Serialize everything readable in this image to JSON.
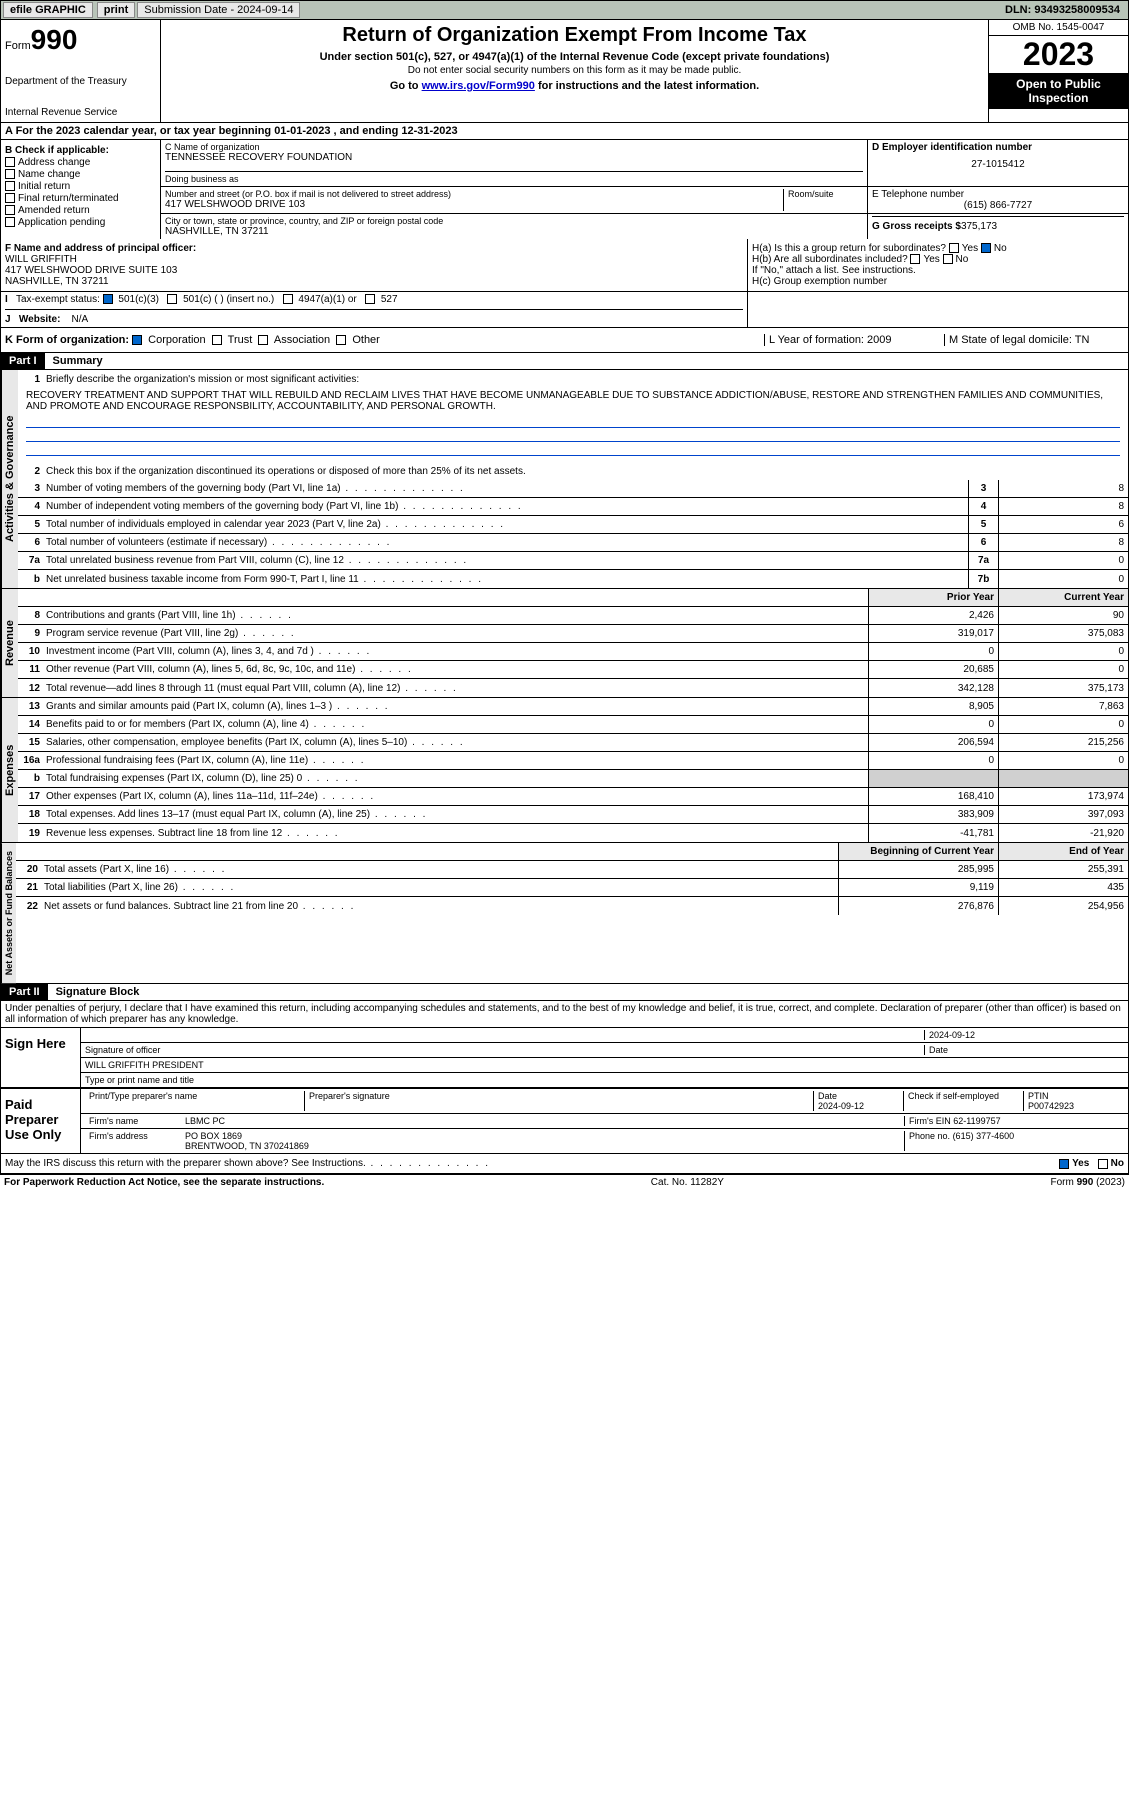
{
  "topbar": {
    "efile": "efile GRAPHIC",
    "print": "print",
    "sub_label": "Submission Date - 2024-09-14",
    "dln": "DLN: 93493258009534"
  },
  "header": {
    "form_prefix": "Form",
    "form_num": "990",
    "dept": "Department of the Treasury",
    "irs": "Internal Revenue Service",
    "title": "Return of Organization Exempt From Income Tax",
    "sub1": "Under section 501(c), 527, or 4947(a)(1) of the Internal Revenue Code (except private foundations)",
    "sub2": "Do not enter social security numbers on this form as it may be made public.",
    "sub3_pre": "Go to ",
    "sub3_link": "www.irs.gov/Form990",
    "sub3_post": " for instructions and the latest information.",
    "omb": "OMB No. 1545-0047",
    "year": "2023",
    "inspect": "Open to Public Inspection"
  },
  "row_a": "A For the 2023 calendar year, or tax year beginning 01-01-2023   , and ending 12-31-2023",
  "col_b": {
    "label": "B Check if applicable:",
    "items": [
      "Address change",
      "Name change",
      "Initial return",
      "Final return/terminated",
      "Amended return",
      "Application pending"
    ]
  },
  "col_c": {
    "name_lbl": "C Name of organization",
    "name": "TENNESSEE RECOVERY FOUNDATION",
    "dba_lbl": "Doing business as",
    "addr_lbl": "Number and street (or P.O. box if mail is not delivered to street address)",
    "room_lbl": "Room/suite",
    "addr": "417 WELSHWOOD DRIVE 103",
    "city_lbl": "City or town, state or province, country, and ZIP or foreign postal code",
    "city": "NASHVILLE, TN  37211"
  },
  "col_d": {
    "ein_lbl": "D Employer identification number",
    "ein": "27-1015412",
    "tel_lbl": "E Telephone number",
    "tel": "(615) 866-7727",
    "gross_lbl": "G Gross receipts $",
    "gross": "375,173"
  },
  "col_f": {
    "lbl": "F Name and address of principal officer:",
    "name": "WILL GRIFFITH",
    "addr": "417 WELSHWOOD DRIVE SUITE 103",
    "city": "NASHVILLE, TN  37211"
  },
  "col_h": {
    "a": "H(a) Is this a group return for subordinates?",
    "b": "H(b) Are all subordinates included?",
    "note": "If \"No,\" attach a list. See instructions.",
    "c": "H(c) Group exemption number"
  },
  "row_i": {
    "lbl": "Tax-exempt status:",
    "opts": [
      "501(c)(3)",
      "501(c) (  ) (insert no.)",
      "4947(a)(1) or",
      "527"
    ]
  },
  "row_j": {
    "lbl": "Website:",
    "val": "N/A"
  },
  "row_k": {
    "lbl": "K Form of organization:",
    "opts": [
      "Corporation",
      "Trust",
      "Association",
      "Other"
    ],
    "l": "L Year of formation: 2009",
    "m": "M State of legal domicile: TN"
  },
  "part1": {
    "hdr": "Part I",
    "title": "Summary"
  },
  "summary": {
    "q1": "Briefly describe the organization's mission or most significant activities:",
    "mission": "RECOVERY TREATMENT AND SUPPORT THAT WILL REBUILD AND RECLAIM LIVES THAT HAVE BECOME UNMANAGEABLE DUE TO SUBSTANCE ADDICTION/ABUSE, RESTORE AND STRENGTHEN FAMILIES AND COMMUNITIES, AND PROMOTE AND ENCOURAGE RESPONSBILITY, ACCOUNTABILITY, AND PERSONAL GROWTH.",
    "q2": "Check this box      if the organization discontinued its operations or disposed of more than 25% of its net assets.",
    "lines_gov": [
      {
        "n": "3",
        "t": "Number of voting members of the governing body (Part VI, line 1a)",
        "b": "3",
        "v": "8"
      },
      {
        "n": "4",
        "t": "Number of independent voting members of the governing body (Part VI, line 1b)",
        "b": "4",
        "v": "8"
      },
      {
        "n": "5",
        "t": "Total number of individuals employed in calendar year 2023 (Part V, line 2a)",
        "b": "5",
        "v": "6"
      },
      {
        "n": "6",
        "t": "Total number of volunteers (estimate if necessary)",
        "b": "6",
        "v": "8"
      },
      {
        "n": "7a",
        "t": "Total unrelated business revenue from Part VIII, column (C), line 12",
        "b": "7a",
        "v": "0"
      },
      {
        "n": "b",
        "t": "Net unrelated business taxable income from Form 990-T, Part I, line 11",
        "b": "7b",
        "v": "0"
      }
    ],
    "hdr_prior": "Prior Year",
    "hdr_curr": "Current Year",
    "lines_rev": [
      {
        "n": "8",
        "t": "Contributions and grants (Part VIII, line 1h)",
        "p": "2,426",
        "c": "90"
      },
      {
        "n": "9",
        "t": "Program service revenue (Part VIII, line 2g)",
        "p": "319,017",
        "c": "375,083"
      },
      {
        "n": "10",
        "t": "Investment income (Part VIII, column (A), lines 3, 4, and 7d )",
        "p": "0",
        "c": "0"
      },
      {
        "n": "11",
        "t": "Other revenue (Part VIII, column (A), lines 5, 6d, 8c, 9c, 10c, and 11e)",
        "p": "20,685",
        "c": "0"
      },
      {
        "n": "12",
        "t": "Total revenue—add lines 8 through 11 (must equal Part VIII, column (A), line 12)",
        "p": "342,128",
        "c": "375,173"
      }
    ],
    "lines_exp": [
      {
        "n": "13",
        "t": "Grants and similar amounts paid (Part IX, column (A), lines 1–3 )",
        "p": "8,905",
        "c": "7,863"
      },
      {
        "n": "14",
        "t": "Benefits paid to or for members (Part IX, column (A), line 4)",
        "p": "0",
        "c": "0"
      },
      {
        "n": "15",
        "t": "Salaries, other compensation, employee benefits (Part IX, column (A), lines 5–10)",
        "p": "206,594",
        "c": "215,256"
      },
      {
        "n": "16a",
        "t": "Professional fundraising fees (Part IX, column (A), line 11e)",
        "p": "0",
        "c": "0"
      },
      {
        "n": "b",
        "t": "Total fundraising expenses (Part IX, column (D), line 25) 0",
        "p": "",
        "c": ""
      },
      {
        "n": "17",
        "t": "Other expenses (Part IX, column (A), lines 11a–11d, 11f–24e)",
        "p": "168,410",
        "c": "173,974"
      },
      {
        "n": "18",
        "t": "Total expenses. Add lines 13–17 (must equal Part IX, column (A), line 25)",
        "p": "383,909",
        "c": "397,093"
      },
      {
        "n": "19",
        "t": "Revenue less expenses. Subtract line 18 from line 12",
        "p": "-41,781",
        "c": "-21,920"
      }
    ],
    "hdr_beg": "Beginning of Current Year",
    "hdr_end": "End of Year",
    "lines_net": [
      {
        "n": "20",
        "t": "Total assets (Part X, line 16)",
        "p": "285,995",
        "c": "255,391"
      },
      {
        "n": "21",
        "t": "Total liabilities (Part X, line 26)",
        "p": "9,119",
        "c": "435"
      },
      {
        "n": "22",
        "t": "Net assets or fund balances. Subtract line 21 from line 20",
        "p": "276,876",
        "c": "254,956"
      }
    ],
    "vtabs": [
      "Activities & Governance",
      "Revenue",
      "Expenses",
      "Net Assets or Fund Balances"
    ]
  },
  "part2": {
    "hdr": "Part II",
    "title": "Signature Block"
  },
  "sig": {
    "perjury": "Under penalties of perjury, I declare that I have examined this return, including accompanying schedules and statements, and to the best of my knowledge and belief, it is true, correct, and complete. Declaration of preparer (other than officer) is based on all information of which preparer has any knowledge.",
    "sign_here": "Sign Here",
    "sig_officer": "Signature of officer",
    "officer": "WILL GRIFFITH PRESIDENT",
    "type_name": "Type or print name and title",
    "date_lbl": "Date",
    "date1": "2024-09-12",
    "paid": "Paid Preparer Use Only",
    "prep_name_lbl": "Print/Type preparer's name",
    "prep_sig_lbl": "Preparer's signature",
    "date2": "2024-09-12",
    "check_lbl": "Check      if self-employed",
    "ptin_lbl": "PTIN",
    "ptin": "P00742923",
    "firm_name_lbl": "Firm's name",
    "firm_name": "LBMC PC",
    "firm_ein_lbl": "Firm's EIN",
    "firm_ein": "62-1199757",
    "firm_addr_lbl": "Firm's address",
    "firm_addr": "PO BOX 1869",
    "firm_city": "BRENTWOOD, TN  370241869",
    "phone_lbl": "Phone no.",
    "phone": "(615) 377-4600",
    "discuss": "May the IRS discuss this return with the preparer shown above? See Instructions."
  },
  "footer": {
    "left": "For Paperwork Reduction Act Notice, see the separate instructions.",
    "mid": "Cat. No. 11282Y",
    "right": "Form 990 (2023)"
  },
  "yesno": {
    "yes": "Yes",
    "no": "No"
  }
}
